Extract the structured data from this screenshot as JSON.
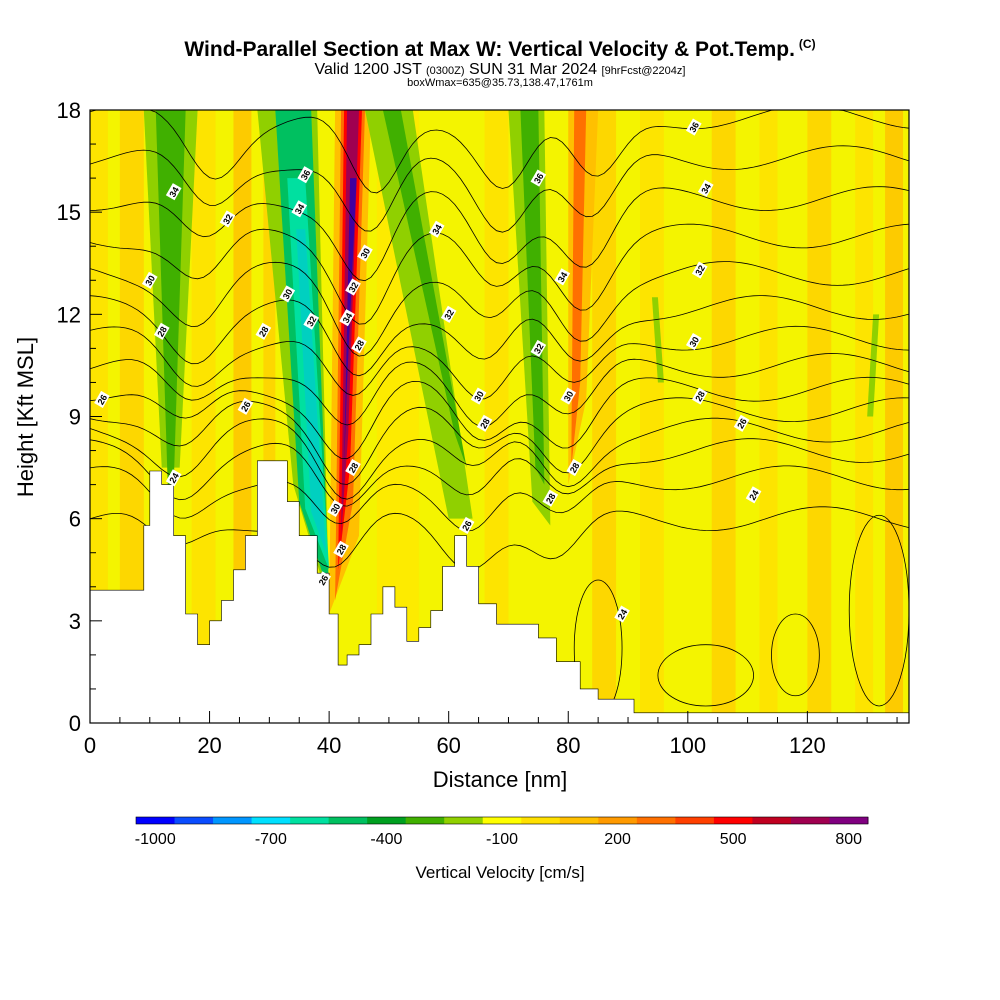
{
  "header": {
    "title": "Wind-Parallel Section at Max W: Vertical Velocity & Pot.Temp.",
    "copyright": "(C)",
    "valid_prefix": "Valid 1200 JST",
    "valid_utc": "(0300Z)",
    "valid_date": "SUN 31 Mar 2024",
    "forecast": "[9hrFcst@2204z]",
    "box_info": "boxWmax=635@35.73,138.47,1761m"
  },
  "chart_data": {
    "type": "heatmap",
    "xlabel": "Distance [nm]",
    "ylabel": "Height [Kft MSL]",
    "xlim": [
      0,
      137
    ],
    "ylim": [
      0,
      18
    ],
    "x_ticks": [
      0,
      20,
      40,
      60,
      80,
      100,
      120
    ],
    "y_ticks": [
      0,
      3,
      6,
      9,
      12,
      15,
      18
    ],
    "colorbar": {
      "label": "Vertical Velocity [cm/s]",
      "tick_labels": [
        "-1000",
        "-700",
        "-400",
        "-100",
        "200",
        "500",
        "800"
      ],
      "colors": [
        "#0000ff",
        "#0a4cff",
        "#0096ff",
        "#00e0ff",
        "#00e0a0",
        "#00c060",
        "#00a020",
        "#40b000",
        "#90d000",
        "#ffff00",
        "#ffe000",
        "#ffc000",
        "#ff9a00",
        "#ff7000",
        "#ff4000",
        "#ff0000",
        "#c00020",
        "#a00050",
        "#800080"
      ]
    },
    "vertical_velocity_bands": [
      {
        "center_nm": 13,
        "peak_cm_s": -250
      },
      {
        "center_nm": 36,
        "peak_cm_s": -650
      },
      {
        "center_nm": 43,
        "peak_cm_s": 800
      },
      {
        "center_nm": 63,
        "peak_cm_s": -150
      },
      {
        "center_nm": 76,
        "peak_cm_s": -300
      },
      {
        "center_nm": 81,
        "peak_cm_s": 350
      }
    ],
    "terrain": [
      {
        "x": 0,
        "h": 3.9
      },
      {
        "x": 7,
        "h": 3.9
      },
      {
        "x": 9,
        "h": 5.8
      },
      {
        "x": 10,
        "h": 7.4
      },
      {
        "x": 12,
        "h": 7.0
      },
      {
        "x": 14,
        "h": 5.5
      },
      {
        "x": 16,
        "h": 3.2
      },
      {
        "x": 18,
        "h": 2.3
      },
      {
        "x": 20,
        "h": 3.0
      },
      {
        "x": 22,
        "h": 3.6
      },
      {
        "x": 24,
        "h": 4.5
      },
      {
        "x": 26,
        "h": 5.5
      },
      {
        "x": 28,
        "h": 7.7
      },
      {
        "x": 31,
        "h": 7.7
      },
      {
        "x": 33,
        "h": 6.5
      },
      {
        "x": 35,
        "h": 5.5
      },
      {
        "x": 38,
        "h": 4.4
      },
      {
        "x": 40,
        "h": 3.2
      },
      {
        "x": 41.5,
        "h": 1.7
      },
      {
        "x": 43,
        "h": 2.0
      },
      {
        "x": 45,
        "h": 2.3
      },
      {
        "x": 47,
        "h": 3.2
      },
      {
        "x": 49,
        "h": 4.0
      },
      {
        "x": 51,
        "h": 3.4
      },
      {
        "x": 53,
        "h": 2.4
      },
      {
        "x": 55,
        "h": 2.8
      },
      {
        "x": 57,
        "h": 3.3
      },
      {
        "x": 59,
        "h": 4.6
      },
      {
        "x": 61,
        "h": 5.5
      },
      {
        "x": 63,
        "h": 4.6
      },
      {
        "x": 65,
        "h": 3.5
      },
      {
        "x": 68,
        "h": 2.9
      },
      {
        "x": 72,
        "h": 2.9
      },
      {
        "x": 75,
        "h": 2.5
      },
      {
        "x": 78,
        "h": 1.8
      },
      {
        "x": 82,
        "h": 1.0
      },
      {
        "x": 85,
        "h": 0.7
      },
      {
        "x": 88,
        "h": 0.7
      },
      {
        "x": 91,
        "h": 0.3
      },
      {
        "x": 137,
        "h": 0.3
      }
    ],
    "contour_labels": [
      {
        "x": 14,
        "y": 15.6,
        "text": "34"
      },
      {
        "x": 36,
        "y": 16.1,
        "text": "36"
      },
      {
        "x": 35,
        "y": 15.1,
        "text": "34"
      },
      {
        "x": 23,
        "y": 14.8,
        "text": "32"
      },
      {
        "x": 10,
        "y": 13.0,
        "text": "30"
      },
      {
        "x": 33,
        "y": 12.6,
        "text": "30"
      },
      {
        "x": 12,
        "y": 11.5,
        "text": "28"
      },
      {
        "x": 29,
        "y": 11.5,
        "text": "28"
      },
      {
        "x": 37,
        "y": 11.8,
        "text": "32"
      },
      {
        "x": 43,
        "y": 11.9,
        "text": "34"
      },
      {
        "x": 44,
        "y": 12.8,
        "text": "32"
      },
      {
        "x": 46,
        "y": 13.8,
        "text": "30"
      },
      {
        "x": 45,
        "y": 11.1,
        "text": "28"
      },
      {
        "x": 2,
        "y": 9.5,
        "text": "26"
      },
      {
        "x": 26,
        "y": 9.3,
        "text": "26"
      },
      {
        "x": 14,
        "y": 7.2,
        "text": "24"
      },
      {
        "x": 44,
        "y": 7.5,
        "text": "28"
      },
      {
        "x": 41,
        "y": 6.3,
        "text": "30"
      },
      {
        "x": 42,
        "y": 5.1,
        "text": "28"
      },
      {
        "x": 39,
        "y": 4.2,
        "text": "26"
      },
      {
        "x": 58,
        "y": 14.5,
        "text": "34"
      },
      {
        "x": 60,
        "y": 12.0,
        "text": "32"
      },
      {
        "x": 65,
        "y": 9.6,
        "text": "30"
      },
      {
        "x": 66,
        "y": 8.8,
        "text": "28"
      },
      {
        "x": 63,
        "y": 5.8,
        "text": "26"
      },
      {
        "x": 75,
        "y": 16.0,
        "text": "36"
      },
      {
        "x": 79,
        "y": 13.1,
        "text": "34"
      },
      {
        "x": 75,
        "y": 11.0,
        "text": "32"
      },
      {
        "x": 80,
        "y": 9.6,
        "text": "30"
      },
      {
        "x": 81,
        "y": 7.5,
        "text": "28"
      },
      {
        "x": 77,
        "y": 6.6,
        "text": "28"
      },
      {
        "x": 101,
        "y": 17.5,
        "text": "36"
      },
      {
        "x": 103,
        "y": 15.7,
        "text": "34"
      },
      {
        "x": 102,
        "y": 13.3,
        "text": "32"
      },
      {
        "x": 101,
        "y": 11.2,
        "text": "30"
      },
      {
        "x": 102,
        "y": 9.6,
        "text": "28"
      },
      {
        "x": 109,
        "y": 8.8,
        "text": "26"
      },
      {
        "x": 111,
        "y": 6.7,
        "text": "24"
      },
      {
        "x": 89,
        "y": 3.2,
        "text": "24"
      }
    ]
  }
}
